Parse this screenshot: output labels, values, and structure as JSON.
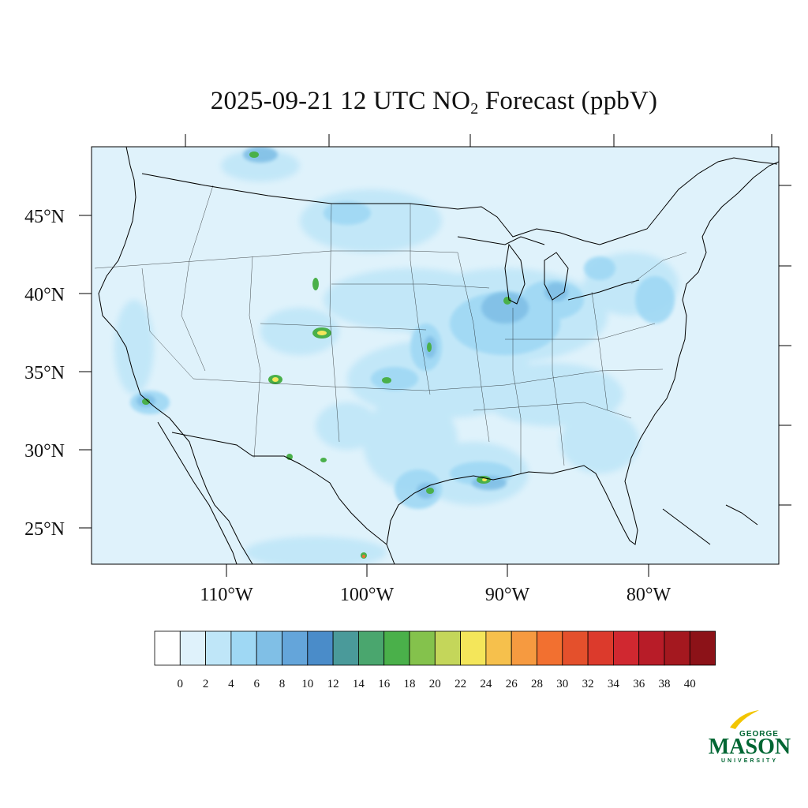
{
  "title": {
    "prefix": "2025-09-21 12 UTC NO",
    "subscript": "2",
    "suffix": " Forecast (ppbV)"
  },
  "map": {
    "lat_labels": [
      "45°N",
      "40°N",
      "35°N",
      "30°N",
      "25°N"
    ],
    "lon_labels": [
      "110°W",
      "100°W",
      "90°W",
      "80°W"
    ],
    "background_color": "#dff2fb"
  },
  "colorbar": {
    "tick_labels": [
      "0",
      "2",
      "4",
      "6",
      "8",
      "10",
      "12",
      "14",
      "16",
      "18",
      "20",
      "22",
      "24",
      "26",
      "28",
      "30",
      "32",
      "34",
      "36",
      "38",
      "40"
    ],
    "colors": [
      "#ffffff",
      "#dff2fb",
      "#bfe6f8",
      "#9fd8f4",
      "#80bfe6",
      "#64a5da",
      "#4a8cc9",
      "#4a9a9a",
      "#4aa66e",
      "#4ab04a",
      "#84c24c",
      "#c4d65a",
      "#f4e65a",
      "#f6c04c",
      "#f69a40",
      "#f27030",
      "#e4502c",
      "#dc3a2c",
      "#d02830",
      "#b81c28",
      "#a4181f",
      "#8c1218"
    ]
  },
  "logo": {
    "line1": "GEORGE",
    "line2": "MASON",
    "line3": "UNIVERSITY",
    "color": "#006633",
    "accent": "#f2c500"
  }
}
